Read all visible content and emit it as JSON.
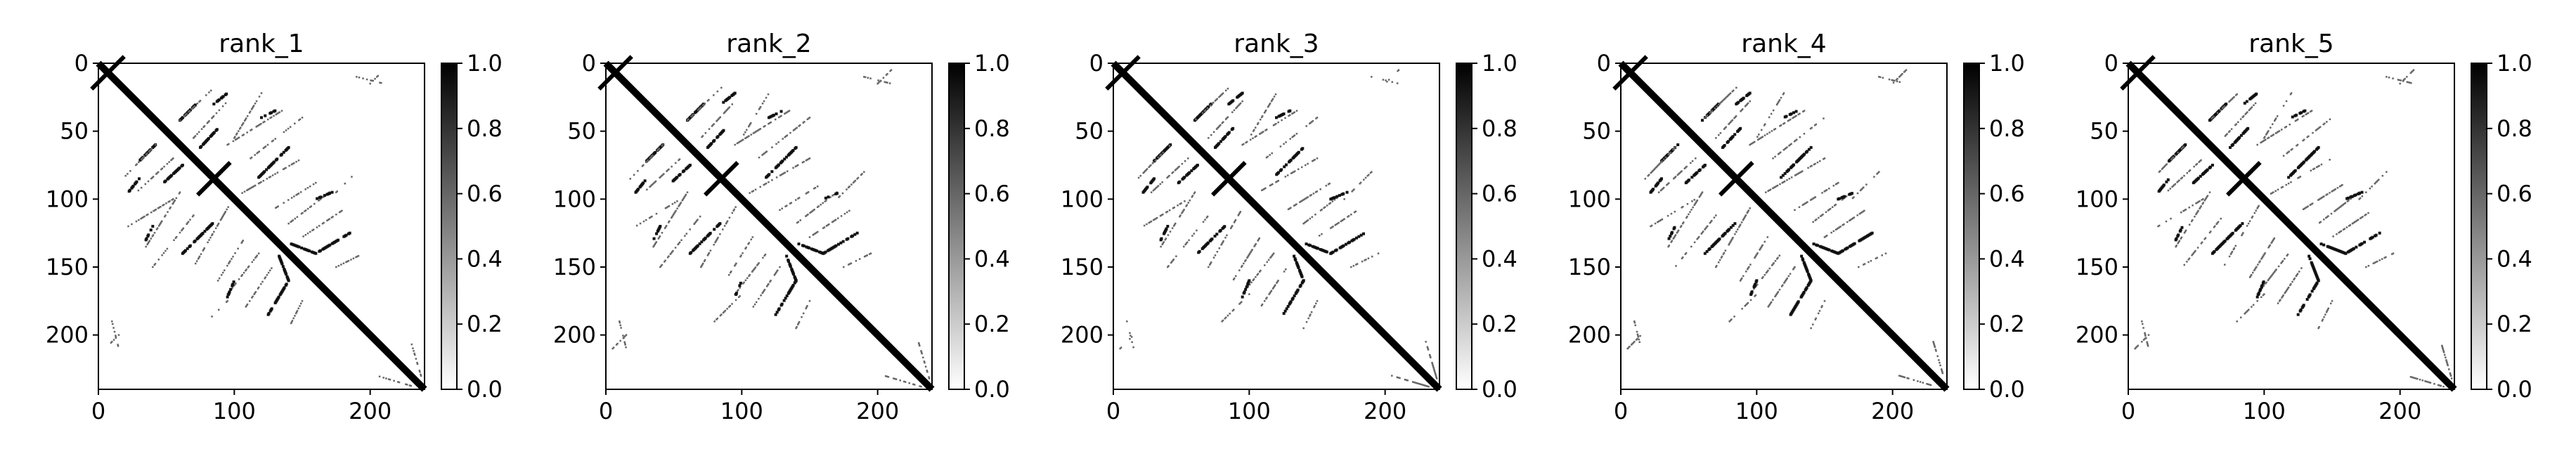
{
  "chart_data": [
    {
      "type": "heatmap",
      "title": "rank_1",
      "matrix_size": 240,
      "xlim": [
        0,
        240
      ],
      "ylim": [
        240,
        0
      ],
      "x_ticks": [
        0,
        100,
        200
      ],
      "y_ticks": [
        0,
        50,
        100,
        150,
        200
      ],
      "x_tick_labels": [
        "0",
        "100",
        "200"
      ],
      "y_tick_labels": [
        "0",
        "50",
        "100",
        "150",
        "200"
      ],
      "colorbar": {
        "range": [
          0.0,
          1.0
        ],
        "ticks": [
          0.0,
          0.2,
          0.4,
          0.6,
          0.8,
          1.0
        ],
        "tick_labels": [
          "0.0",
          "0.2",
          "0.4",
          "0.6",
          "0.8",
          "1.0"
        ],
        "colormap": "gray_r"
      },
      "pattern": "symmetric contact map: thick main diagonal; X crossings near 7 and 85 along the diagonal; dotted off-diagonal contacts"
    },
    {
      "type": "heatmap",
      "title": "rank_2",
      "matrix_size": 240,
      "xlim": [
        0,
        240
      ],
      "ylim": [
        240,
        0
      ],
      "x_ticks": [
        0,
        100,
        200
      ],
      "y_ticks": [
        0,
        50,
        100,
        150,
        200
      ],
      "x_tick_labels": [
        "0",
        "100",
        "200"
      ],
      "y_tick_labels": [
        "0",
        "50",
        "100",
        "150",
        "200"
      ],
      "colorbar": {
        "range": [
          0.0,
          1.0
        ],
        "ticks": [
          0.0,
          0.2,
          0.4,
          0.6,
          0.8,
          1.0
        ],
        "tick_labels": [
          "0.0",
          "0.2",
          "0.4",
          "0.6",
          "0.8",
          "1.0"
        ],
        "colormap": "gray_r"
      },
      "pattern": "symmetric contact map: thick main diagonal; X crossings near 7 and 85 along the diagonal; dotted off-diagonal contacts"
    },
    {
      "type": "heatmap",
      "title": "rank_3",
      "matrix_size": 240,
      "xlim": [
        0,
        240
      ],
      "ylim": [
        240,
        0
      ],
      "x_ticks": [
        0,
        100,
        200
      ],
      "y_ticks": [
        0,
        50,
        100,
        150,
        200
      ],
      "x_tick_labels": [
        "0",
        "100",
        "200"
      ],
      "y_tick_labels": [
        "0",
        "50",
        "100",
        "150",
        "200"
      ],
      "colorbar": {
        "range": [
          0.0,
          1.0
        ],
        "ticks": [
          0.0,
          0.2,
          0.4,
          0.6,
          0.8,
          1.0
        ],
        "tick_labels": [
          "0.0",
          "0.2",
          "0.4",
          "0.6",
          "0.8",
          "1.0"
        ],
        "colormap": "gray_r"
      },
      "pattern": "symmetric contact map: thick main diagonal; X crossings near 7 and 85 along the diagonal; dotted off-diagonal contacts"
    },
    {
      "type": "heatmap",
      "title": "rank_4",
      "matrix_size": 240,
      "xlim": [
        0,
        240
      ],
      "ylim": [
        240,
        0
      ],
      "x_ticks": [
        0,
        100,
        200
      ],
      "y_ticks": [
        0,
        50,
        100,
        150,
        200
      ],
      "x_tick_labels": [
        "0",
        "100",
        "200"
      ],
      "y_tick_labels": [
        "0",
        "50",
        "100",
        "150",
        "200"
      ],
      "colorbar": {
        "range": [
          0.0,
          1.0
        ],
        "ticks": [
          0.0,
          0.2,
          0.4,
          0.6,
          0.8,
          1.0
        ],
        "tick_labels": [
          "0.0",
          "0.2",
          "0.4",
          "0.6",
          "0.8",
          "1.0"
        ],
        "colormap": "gray_r"
      },
      "pattern": "symmetric contact map: thick main diagonal; X crossings near 7 and 85 along the diagonal; dotted off-diagonal contacts"
    },
    {
      "type": "heatmap",
      "title": "rank_5",
      "matrix_size": 240,
      "xlim": [
        0,
        240
      ],
      "ylim": [
        240,
        0
      ],
      "x_ticks": [
        0,
        100,
        200
      ],
      "y_ticks": [
        0,
        50,
        100,
        150,
        200
      ],
      "x_tick_labels": [
        "0",
        "100",
        "200"
      ],
      "y_tick_labels": [
        "0",
        "50",
        "100",
        "150",
        "200"
      ],
      "colorbar": {
        "range": [
          0.0,
          1.0
        ],
        "ticks": [
          0.0,
          0.2,
          0.4,
          0.6,
          0.8,
          1.0
        ],
        "tick_labels": [
          "0.0",
          "0.2",
          "0.4",
          "0.6",
          "0.8",
          "1.0"
        ],
        "colormap": "gray_r"
      },
      "pattern": "symmetric contact map: thick main diagonal; X crossings near 7 and 85 along the diagonal; dotted off-diagonal contacts"
    }
  ]
}
